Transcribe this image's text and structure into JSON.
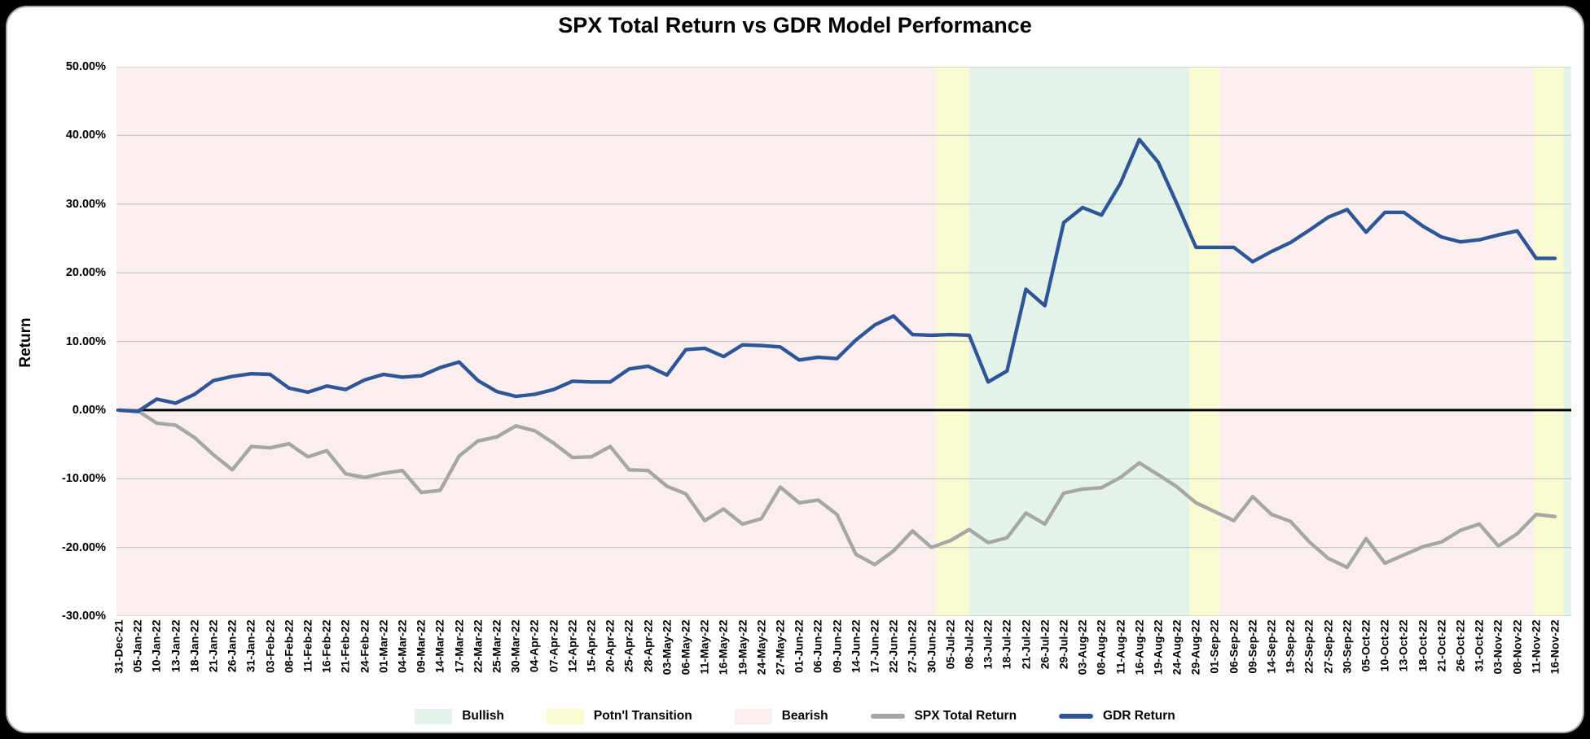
{
  "window": {
    "background": "#000000",
    "card_background": "#ffffff",
    "card_border": "#a9a9a9"
  },
  "chart_data": {
    "type": "line",
    "title": "SPX Total Return vs GDR Model Performance",
    "ylabel": "Return",
    "grid": {
      "color": "#c8c8c8",
      "zero_line_color": "#000000"
    },
    "y_ticks": {
      "min": -30,
      "max": 50,
      "step": 10
    },
    "y_tick_labels": [
      "50.00%",
      "40.00%",
      "30.00%",
      "20.00%",
      "10.00%",
      "0.00%",
      "-10.00%",
      "-20.00%",
      "-30.00%"
    ],
    "x_range_index": [
      -0.13,
      76.86
    ],
    "x_tick_labels": [
      "31-Dec-21",
      "05-Jan-22",
      "10-Jan-22",
      "13-Jan-22",
      "18-Jan-22",
      "21-Jan-22",
      "26-Jan-22",
      "31-Jan-22",
      "03-Feb-22",
      "08-Feb-22",
      "11-Feb-22",
      "16-Feb-22",
      "21-Feb-22",
      "24-Feb-22",
      "01-Mar-22",
      "04-Mar-22",
      "09-Mar-22",
      "14-Mar-22",
      "17-Mar-22",
      "22-Mar-22",
      "25-Mar-22",
      "30-Mar-22",
      "04-Apr-22",
      "07-Apr-22",
      "12-Apr-22",
      "15-Apr-22",
      "20-Apr-22",
      "25-Apr-22",
      "28-Apr-22",
      "03-May-22",
      "06-May-22",
      "11-May-22",
      "16-May-22",
      "19-May-22",
      "24-May-22",
      "27-May-22",
      "01-Jun-22",
      "06-Jun-22",
      "09-Jun-22",
      "14-Jun-22",
      "17-Jun-22",
      "22-Jun-22",
      "27-Jun-22",
      "30-Jun-22",
      "05-Jul-22",
      "08-Jul-22",
      "13-Jul-22",
      "18-Jul-22",
      "21-Jul-22",
      "26-Jul-22",
      "29-Jul-22",
      "03-Aug-22",
      "08-Aug-22",
      "11-Aug-22",
      "16-Aug-22",
      "19-Aug-22",
      "24-Aug-22",
      "29-Aug-22",
      "01-Sep-22",
      "06-Sep-22",
      "09-Sep-22",
      "14-Sep-22",
      "19-Sep-22",
      "22-Sep-22",
      "27-Sep-22",
      "30-Sep-22",
      "05-Oct-22",
      "10-Oct-22",
      "13-Oct-22",
      "18-Oct-22",
      "21-Oct-22",
      "26-Oct-22",
      "31-Oct-22",
      "03-Nov-22",
      "08-Nov-22",
      "11-Nov-22",
      "16-Nov-22"
    ],
    "series": [
      {
        "name": "SPX Total Return",
        "color": "#a6a6a6",
        "values": [
          0.0,
          -0.1,
          -1.9,
          -2.2,
          -4.0,
          -6.5,
          -8.7,
          -5.3,
          -5.5,
          -4.9,
          -6.8,
          -5.9,
          -9.3,
          -9.8,
          -9.2,
          -8.8,
          -12.0,
          -11.7,
          -6.7,
          -4.5,
          -3.9,
          -2.3,
          -3.0,
          -4.8,
          -6.9,
          -6.8,
          -5.3,
          -8.7,
          -8.8,
          -11.1,
          -12.2,
          -16.1,
          -14.4,
          -16.6,
          -15.8,
          -11.2,
          -13.5,
          -13.1,
          -15.2,
          -21.0,
          -22.5,
          -20.5,
          -17.6,
          -20.0,
          -19.0,
          -17.4,
          -19.3,
          -18.6,
          -15.0,
          -16.6,
          -12.1,
          -11.5,
          -11.3,
          -9.8,
          -7.7,
          -9.4,
          -11.2,
          -13.5,
          -14.8,
          -16.1,
          -12.6,
          -15.2,
          -16.2,
          -19.2,
          -21.6,
          -22.9,
          -18.7,
          -22.3,
          -21.1,
          -19.9,
          -19.2,
          -17.5,
          -16.6,
          -19.8,
          -18.0,
          -15.2,
          -15.5
        ]
      },
      {
        "name": "GDR Return",
        "color": "#2e5596",
        "values": [
          0.0,
          -0.2,
          1.6,
          1.0,
          2.3,
          4.3,
          4.9,
          5.3,
          5.2,
          3.2,
          2.6,
          3.5,
          3.0,
          4.4,
          5.2,
          4.8,
          5.0,
          6.2,
          7.0,
          4.3,
          2.7,
          2.0,
          2.3,
          3.0,
          4.2,
          4.1,
          4.1,
          6.0,
          6.4,
          5.1,
          8.8,
          9.0,
          7.8,
          9.5,
          9.4,
          9.2,
          7.3,
          7.7,
          7.5,
          10.2,
          12.4,
          13.7,
          11.0,
          10.9,
          11.0,
          10.9,
          4.1,
          5.7,
          17.6,
          15.2,
          27.3,
          29.5,
          28.4,
          33.0,
          39.4,
          36.1,
          30.0,
          23.7,
          23.7,
          23.7,
          21.6,
          23.1,
          24.4,
          26.2,
          28.1,
          29.2,
          25.9,
          28.8,
          28.8,
          26.8,
          25.2,
          24.5,
          24.8,
          25.5,
          26.1,
          22.1,
          22.1
        ]
      }
    ],
    "regions": [
      {
        "label": "Bearish",
        "from": -0.13,
        "to": 43.25
      },
      {
        "label": "Potn'l Transition",
        "from": 43.25,
        "to": 45.0
      },
      {
        "label": "Bullish",
        "from": 45.0,
        "to": 56.65
      },
      {
        "label": "Potn'l Transition",
        "from": 56.65,
        "to": 58.25
      },
      {
        "label": "Bearish",
        "from": 58.25,
        "to": 74.9
      },
      {
        "label": "Potn'l Transition",
        "from": 74.9,
        "to": 76.45
      },
      {
        "label": "Bullish",
        "from": 76.45,
        "to": 76.86
      }
    ],
    "region_colors": {
      "Bullish": "#e3f3ea",
      "Potn'l Transition": "#fbfbd2",
      "Bearish": "#fbeeee"
    },
    "legend": [
      {
        "label": "Bullish",
        "marker": "patch",
        "color": "#e3f3ea"
      },
      {
        "label": "Potn'l Transition",
        "marker": "patch",
        "color": "#fbfbd2"
      },
      {
        "label": "Bearish",
        "marker": "patch",
        "color": "#fbeeee"
      },
      {
        "label": "SPX Total Return",
        "marker": "line",
        "color": "#a6a6a6"
      },
      {
        "label": "GDR Return",
        "marker": "line",
        "color": "#2e5596"
      }
    ]
  }
}
